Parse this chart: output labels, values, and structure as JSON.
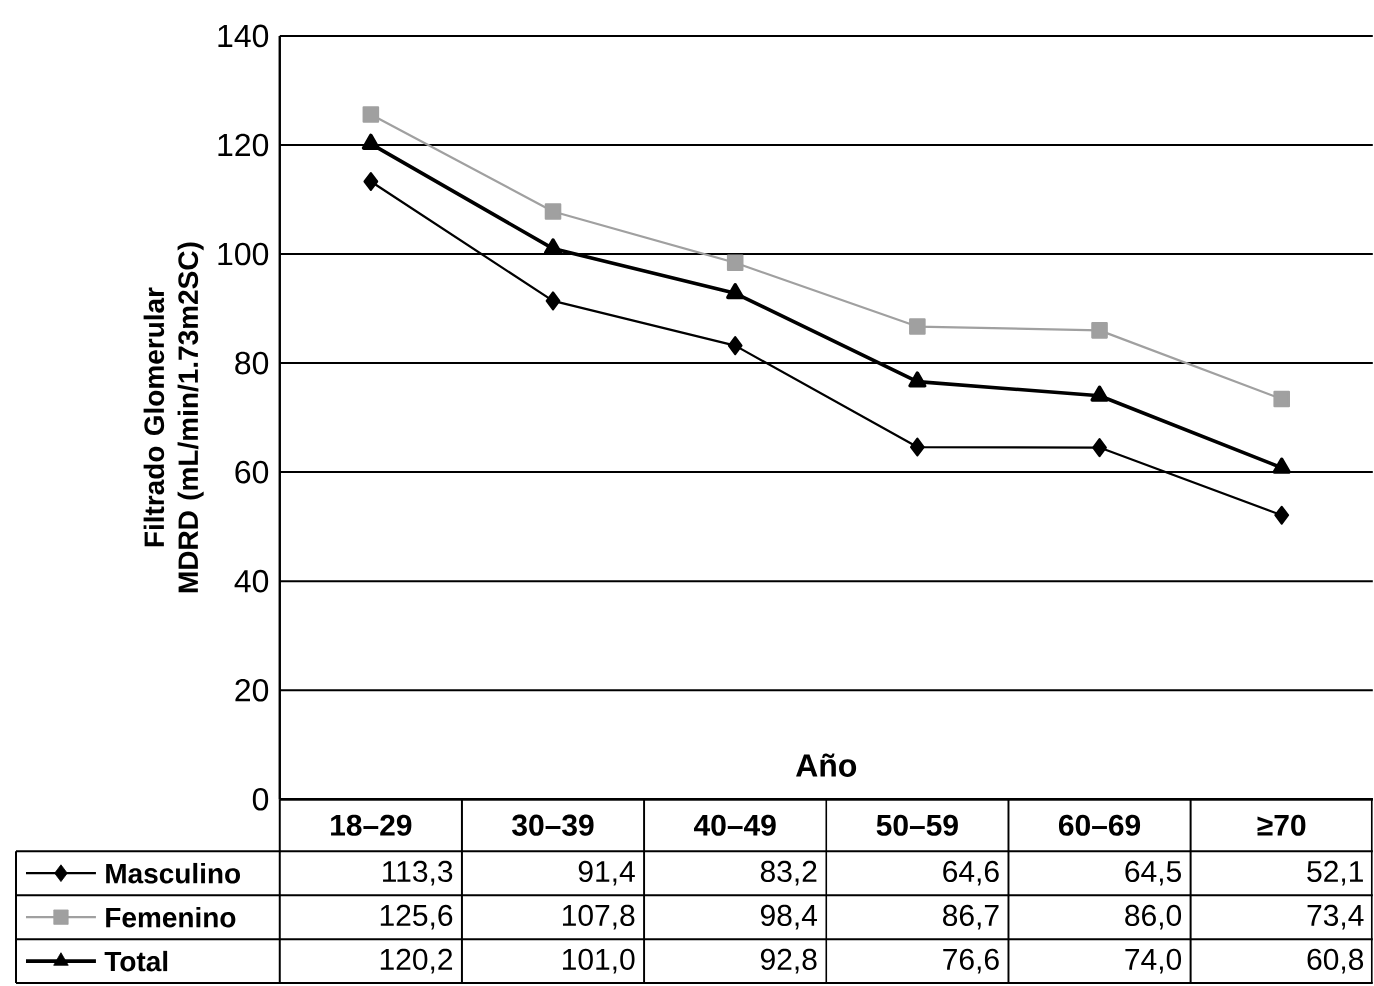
{
  "chart_data": {
    "type": "line",
    "xlabel": "Año",
    "ylabel": "Filtrado Glomerular MDRD (mL/min/1.73m2SC)",
    "categories": [
      "18–29",
      "30–39",
      "40–49",
      "50–59",
      "60–69",
      "≥70"
    ],
    "series": [
      {
        "name": "Masculino",
        "color": "#000000",
        "marker": "diamond",
        "values": [
          113.3,
          91.4,
          83.2,
          64.6,
          64.5,
          52.1
        ],
        "value_labels": [
          "113,3",
          "91,4",
          "83,2",
          "64,6",
          "64,5",
          "52,1"
        ]
      },
      {
        "name": "Femenino",
        "color": "#a0a0a0",
        "marker": "square",
        "values": [
          125.6,
          107.8,
          98.4,
          86.7,
          86.0,
          73.4
        ],
        "value_labels": [
          "125,6",
          "107,8",
          "98,4",
          "86,7",
          "86,0",
          "73,4"
        ]
      },
      {
        "name": "Total",
        "color": "#000000",
        "marker": "triangle",
        "values": [
          120.2,
          101.0,
          92.8,
          76.6,
          74.0,
          60.8
        ],
        "value_labels": [
          "120,2",
          "101,0",
          "92,8",
          "76,6",
          "74,0",
          "60,8"
        ]
      }
    ],
    "ylim": [
      0,
      140
    ],
    "yticks": [
      0,
      20,
      40,
      60,
      80,
      100,
      120,
      140
    ],
    "grid": "y",
    "legend": "bottom left"
  }
}
